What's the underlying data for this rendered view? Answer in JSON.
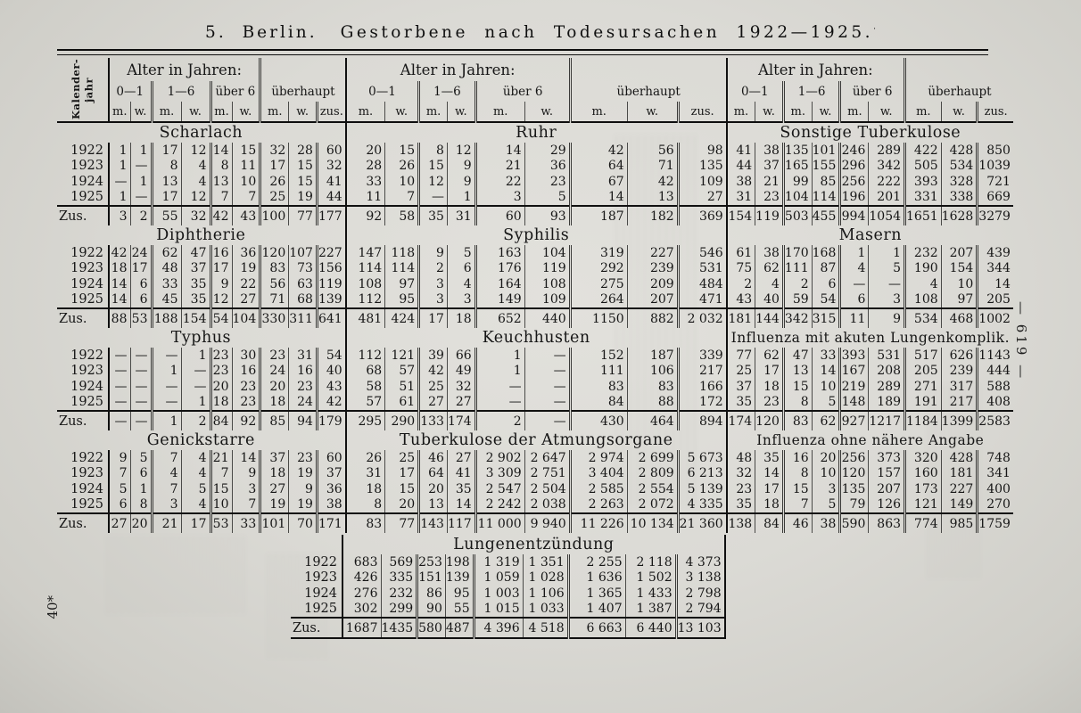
{
  "page": {
    "title_left": "5. Berlin.",
    "title_right": "Gestorbene nach Todesursachen 1922—1925.",
    "title_mark": "·",
    "page_number": "—  619  —",
    "footer_mark": "40*"
  },
  "header": {
    "row_label_line1": "Kalender-",
    "row_label_line2": "jahr",
    "age_label": "Alter in Jahren:",
    "age_groups": [
      "0—1",
      "1—6",
      "über 6"
    ],
    "overall_label": "überhaupt",
    "m": "m.",
    "w": "w.",
    "zus": "zus."
  },
  "years": [
    "1922",
    "1923",
    "1924",
    "1925"
  ],
  "total_label": "Zus.",
  "bands": [
    {
      "sections": [
        {
          "title": "Scharlach",
          "rows": [
            [
              "1",
              "1",
              "17",
              "12",
              "14",
              "15",
              "32",
              "28",
              "60"
            ],
            [
              "1",
              "—",
              "8",
              "4",
              "8",
              "11",
              "17",
              "15",
              "32"
            ],
            [
              "—",
              "1",
              "13",
              "4",
              "13",
              "10",
              "26",
              "15",
              "41"
            ],
            [
              "1",
              "—",
              "17",
              "12",
              "7",
              "7",
              "25",
              "19",
              "44"
            ]
          ],
          "total": [
            "3",
            "2",
            "55",
            "32",
            "42",
            "43",
            "100",
            "77",
            "177"
          ]
        },
        {
          "title": "Ruhr",
          "rows": [
            [
              "20",
              "15",
              "8",
              "12",
              "14",
              "29",
              "42",
              "56",
              "98"
            ],
            [
              "28",
              "26",
              "15",
              "9",
              "21",
              "36",
              "64",
              "71",
              "135"
            ],
            [
              "33",
              "10",
              "12",
              "9",
              "22",
              "23",
              "67",
              "42",
              "109"
            ],
            [
              "11",
              "7",
              "—",
              "1",
              "3",
              "5",
              "14",
              "13",
              "27"
            ]
          ],
          "total": [
            "92",
            "58",
            "35",
            "31",
            "60",
            "93",
            "187",
            "182",
            "369"
          ]
        },
        {
          "title": "Sonstige Tuberkulose",
          "rows": [
            [
              "41",
              "38",
              "135",
              "101",
              "246",
              "289",
              "422",
              "428",
              "850"
            ],
            [
              "44",
              "37",
              "165",
              "155",
              "296",
              "342",
              "505",
              "534",
              "1039"
            ],
            [
              "38",
              "21",
              "99",
              "85",
              "256",
              "222",
              "393",
              "328",
              "721"
            ],
            [
              "31",
              "23",
              "104",
              "114",
              "196",
              "201",
              "331",
              "338",
              "669"
            ]
          ],
          "total": [
            "154",
            "119",
            "503",
            "455",
            "994",
            "1054",
            "1651",
            "1628",
            "3279"
          ]
        }
      ]
    },
    {
      "sections": [
        {
          "title": "Diphtherie",
          "rows": [
            [
              "42",
              "24",
              "62",
              "47",
              "16",
              "36",
              "120",
              "107",
              "227"
            ],
            [
              "18",
              "17",
              "48",
              "37",
              "17",
              "19",
              "83",
              "73",
              "156"
            ],
            [
              "14",
              "6",
              "33",
              "35",
              "9",
              "22",
              "56",
              "63",
              "119"
            ],
            [
              "14",
              "6",
              "45",
              "35",
              "12",
              "27",
              "71",
              "68",
              "139"
            ]
          ],
          "total": [
            "88",
            "53",
            "188",
            "154",
            "54",
            "104",
            "330",
            "311",
            "641"
          ]
        },
        {
          "title": "Syphilis",
          "rows": [
            [
              "147",
              "118",
              "9",
              "5",
              "163",
              "104",
              "319",
              "227",
              "546"
            ],
            [
              "114",
              "114",
              "2",
              "6",
              "176",
              "119",
              "292",
              "239",
              "531"
            ],
            [
              "108",
              "97",
              "3",
              "4",
              "164",
              "108",
              "275",
              "209",
              "484"
            ],
            [
              "112",
              "95",
              "3",
              "3",
              "149",
              "109",
              "264",
              "207",
              "471"
            ]
          ],
          "total": [
            "481",
            "424",
            "17",
            "18",
            "652",
            "440",
            "1150",
            "882",
            "2 032"
          ]
        },
        {
          "title": "Masern",
          "rows": [
            [
              "61",
              "38",
              "170",
              "168",
              "1",
              "1",
              "232",
              "207",
              "439"
            ],
            [
              "75",
              "62",
              "111",
              "87",
              "4",
              "5",
              "190",
              "154",
              "344"
            ],
            [
              "2",
              "4",
              "2",
              "6",
              "—",
              "—",
              "4",
              "10",
              "14"
            ],
            [
              "43",
              "40",
              "59",
              "54",
              "6",
              "3",
              "108",
              "97",
              "205"
            ]
          ],
          "total": [
            "181",
            "144",
            "342",
            "315",
            "11",
            "9",
            "534",
            "468",
            "1002"
          ]
        }
      ]
    },
    {
      "sections": [
        {
          "title": "Typhus",
          "rows": [
            [
              "—",
              "—",
              "—",
              "1",
              "23",
              "30",
              "23",
              "31",
              "54"
            ],
            [
              "—",
              "—",
              "1",
              "—",
              "23",
              "16",
              "24",
              "16",
              "40"
            ],
            [
              "—",
              "—",
              "—",
              "—",
              "20",
              "23",
              "20",
              "23",
              "43"
            ],
            [
              "—",
              "—",
              "—",
              "1",
              "18",
              "23",
              "18",
              "24",
              "42"
            ]
          ],
          "total": [
            "—",
            "—",
            "1",
            "2",
            "84",
            "92",
            "85",
            "94",
            "179"
          ]
        },
        {
          "title": "Keuchhusten",
          "rows": [
            [
              "112",
              "121",
              "39",
              "66",
              "1",
              "—",
              "152",
              "187",
              "339"
            ],
            [
              "68",
              "57",
              "42",
              "49",
              "1",
              "—",
              "111",
              "106",
              "217"
            ],
            [
              "58",
              "51",
              "25",
              "32",
              "—",
              "—",
              "83",
              "83",
              "166"
            ],
            [
              "57",
              "61",
              "27",
              "27",
              "—",
              "—",
              "84",
              "88",
              "172"
            ]
          ],
          "total": [
            "295",
            "290",
            "133",
            "174",
            "2",
            "—",
            "430",
            "464",
            "894"
          ]
        },
        {
          "title": "Influenza mit akuten Lungenkomplik.",
          "rows": [
            [
              "77",
              "62",
              "47",
              "33",
              "393",
              "531",
              "517",
              "626",
              "1143"
            ],
            [
              "25",
              "17",
              "13",
              "14",
              "167",
              "208",
              "205",
              "239",
              "444"
            ],
            [
              "37",
              "18",
              "15",
              "10",
              "219",
              "289",
              "271",
              "317",
              "588"
            ],
            [
              "35",
              "23",
              "8",
              "5",
              "148",
              "189",
              "191",
              "217",
              "408"
            ]
          ],
          "total": [
            "174",
            "120",
            "83",
            "62",
            "927",
            "1217",
            "1184",
            "1399",
            "2583"
          ]
        }
      ]
    },
    {
      "sections": [
        {
          "title": "Genickstarre",
          "rows": [
            [
              "9",
              "5",
              "7",
              "4",
              "21",
              "14",
              "37",
              "23",
              "60"
            ],
            [
              "7",
              "6",
              "4",
              "4",
              "7",
              "9",
              "18",
              "19",
              "37"
            ],
            [
              "5",
              "1",
              "7",
              "5",
              "15",
              "3",
              "27",
              "9",
              "36"
            ],
            [
              "6",
              "8",
              "3",
              "4",
              "10",
              "7",
              "19",
              "19",
              "38"
            ]
          ],
          "total": [
            "27",
            "20",
            "21",
            "17",
            "53",
            "33",
            "101",
            "70",
            "171"
          ]
        },
        {
          "title": "Tuberkulose der Atmungsorgane",
          "rows": [
            [
              "26",
              "25",
              "46",
              "27",
              "2 902",
              "2 647",
              "2 974",
              "2 699",
              "5 673"
            ],
            [
              "31",
              "17",
              "64",
              "41",
              "3 309",
              "2 751",
              "3 404",
              "2 809",
              "6 213"
            ],
            [
              "18",
              "15",
              "20",
              "35",
              "2 547",
              "2 504",
              "2 585",
              "2 554",
              "5 139"
            ],
            [
              "8",
              "20",
              "13",
              "14",
              "2 242",
              "2 038",
              "2 263",
              "2 072",
              "4 335"
            ]
          ],
          "total": [
            "83",
            "77",
            "143",
            "117",
            "11 000",
            "9 940",
            "11 226",
            "10 134",
            "21 360"
          ]
        },
        {
          "title": "Influenza ohne nähere Angabe",
          "rows": [
            [
              "48",
              "35",
              "16",
              "20",
              "256",
              "373",
              "320",
              "428",
              "748"
            ],
            [
              "32",
              "14",
              "8",
              "10",
              "120",
              "157",
              "160",
              "181",
              "341"
            ],
            [
              "23",
              "17",
              "15",
              "3",
              "135",
              "207",
              "173",
              "227",
              "400"
            ],
            [
              "35",
              "18",
              "7",
              "5",
              "79",
              "126",
              "121",
              "149",
              "270"
            ]
          ],
          "total": [
            "138",
            "84",
            "46",
            "38",
            "590",
            "863",
            "774",
            "985",
            "1759"
          ]
        }
      ]
    }
  ],
  "bottom_section": {
    "title": "Lungenentzündung",
    "rows": [
      [
        "683",
        "569",
        "253",
        "198",
        "1 319",
        "1 351",
        "2 255",
        "2 118",
        "4 373"
      ],
      [
        "426",
        "335",
        "151",
        "139",
        "1 059",
        "1 028",
        "1 636",
        "1 502",
        "3 138"
      ],
      [
        "276",
        "232",
        "86",
        "95",
        "1 003",
        "1 106",
        "1 365",
        "1 433",
        "2 798"
      ],
      [
        "302",
        "299",
        "90",
        "55",
        "1 015",
        "1 033",
        "1 407",
        "1 387",
        "2 794"
      ]
    ],
    "total": [
      "1687",
      "1435",
      "580",
      "487",
      "4 396",
      "4 518",
      "6 663",
      "6 440",
      "13 103"
    ]
  }
}
